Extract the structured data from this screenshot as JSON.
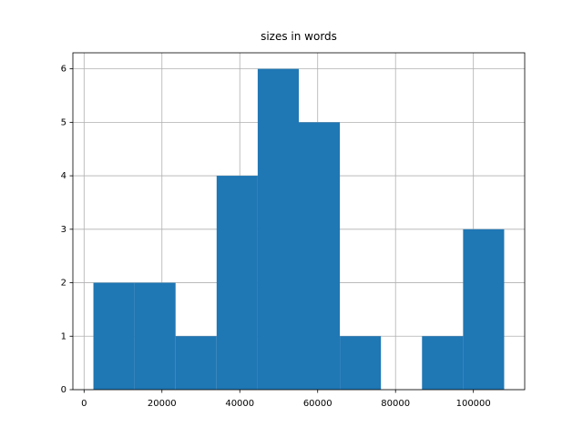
{
  "chart_data": {
    "type": "histogram",
    "title": "sizes in words",
    "bins": [
      2400,
      12950,
      23500,
      34050,
      44600,
      55150,
      65700,
      76250,
      86800,
      97350,
      107900
    ],
    "counts": [
      2,
      2,
      1,
      4,
      6,
      5,
      1,
      0,
      1,
      3
    ],
    "color": "#1f77b4",
    "xlim": [
      -2875,
      113175
    ],
    "xticks": [
      0,
      20000,
      40000,
      60000,
      80000,
      100000
    ],
    "ylim": [
      0,
      6.3
    ],
    "yticks": [
      0,
      1,
      2,
      3,
      4,
      5,
      6
    ],
    "grid": true
  }
}
